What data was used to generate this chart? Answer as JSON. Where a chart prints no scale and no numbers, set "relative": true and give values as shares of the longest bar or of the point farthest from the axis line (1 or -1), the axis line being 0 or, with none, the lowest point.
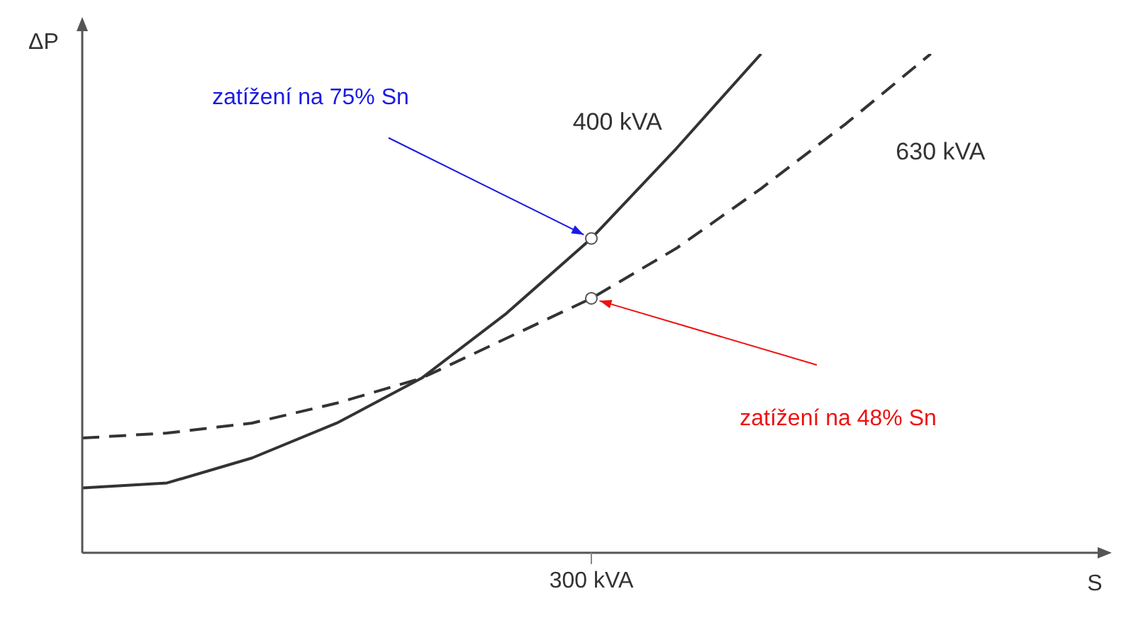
{
  "chart_data": {
    "type": "line",
    "relative": true,
    "ylabel": "ΔP",
    "legend": false,
    "marker": "none",
    "categories": [
      null,
      null,
      null,
      null,
      null,
      null,
      null,
      null,
      null,
      null,
      null
    ],
    "series": [
      {
        "name": "400 kVA",
        "color": "#333333",
        "line_style": "solid",
        "values": [
          0.13,
          0.14,
          0.19,
          0.26,
          0.35,
          0.48,
          0.63,
          0.81,
          1.0,
          null,
          null
        ]
      },
      {
        "name": "630 kVA",
        "color": "#333333",
        "line_style": "dashed",
        "values": [
          0.23,
          0.24,
          0.26,
          0.3,
          0.35,
          0.43,
          0.51,
          0.61,
          0.73,
          0.86,
          1.0
        ]
      }
    ],
    "annotations": [
      "zatížení na 75% Sn",
      "zatížení na 48% Sn",
      "300 kVA",
      "S"
    ]
  }
}
